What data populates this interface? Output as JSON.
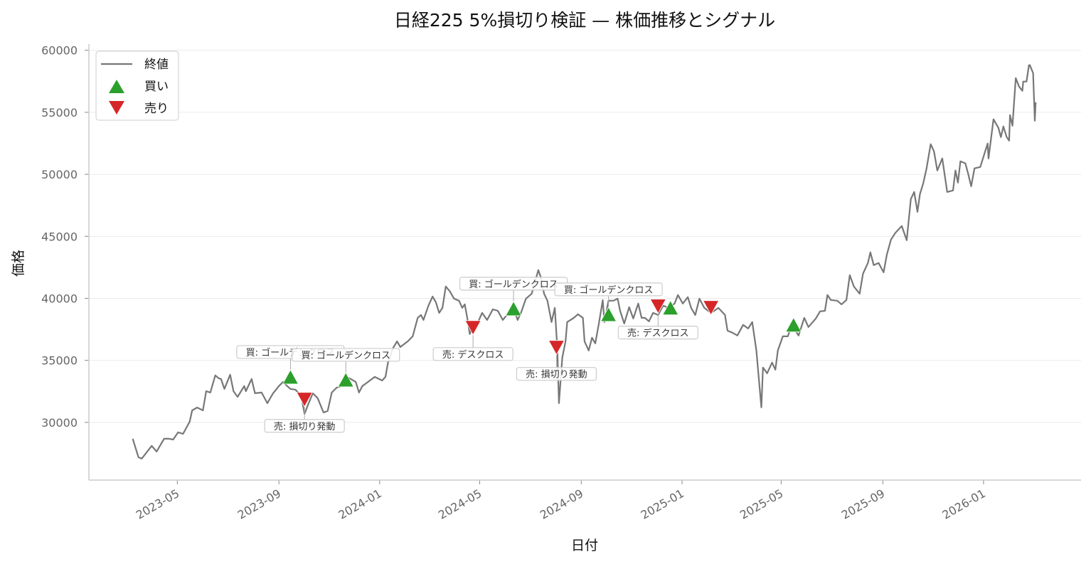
{
  "chart_data": {
    "type": "line",
    "title": "日経225 5%損切り検証 — 株価推移とシグナル",
    "xlabel": "日付",
    "ylabel": "価格",
    "xlim": [
      "2023-01-14",
      "2026-04-29"
    ],
    "ylim": [
      25350,
      60500
    ],
    "y_ticks": [
      30000,
      35000,
      40000,
      45000,
      50000,
      55000,
      60000
    ],
    "x_ticks": [
      "2023-05",
      "2023-09",
      "2024-01",
      "2024-05",
      "2024-09",
      "2025-01",
      "2025-05",
      "2025-09",
      "2026-01"
    ],
    "grid": "horizontal",
    "legend_position": "top-left",
    "legend": [
      "終値",
      "買い",
      "売り"
    ],
    "colors": {
      "close": "#777777",
      "buy": "#2ca02c",
      "sell": "#d62728"
    },
    "series": [
      {
        "name": "終値",
        "points": [
          [
            "2023-03-08",
            28680
          ],
          [
            "2023-03-15",
            27190
          ],
          [
            "2023-03-19",
            27080
          ],
          [
            "2023-03-31",
            28110
          ],
          [
            "2023-04-06",
            27650
          ],
          [
            "2023-04-15",
            28680
          ],
          [
            "2023-04-21",
            28680
          ],
          [
            "2023-04-26",
            28620
          ],
          [
            "2023-05-02",
            29200
          ],
          [
            "2023-05-08",
            29080
          ],
          [
            "2023-05-16",
            30060
          ],
          [
            "2023-05-19",
            30970
          ],
          [
            "2023-05-25",
            31200
          ],
          [
            "2023-06-01",
            30970
          ],
          [
            "2023-06-05",
            32520
          ],
          [
            "2023-06-10",
            32410
          ],
          [
            "2023-06-16",
            33790
          ],
          [
            "2023-06-20",
            33560
          ],
          [
            "2023-06-23",
            33500
          ],
          [
            "2023-06-27",
            32700
          ],
          [
            "2023-07-04",
            33840
          ],
          [
            "2023-07-08",
            32520
          ],
          [
            "2023-07-13",
            32060
          ],
          [
            "2023-07-21",
            32930
          ],
          [
            "2023-07-23",
            32520
          ],
          [
            "2023-07-30",
            33500
          ],
          [
            "2023-08-03",
            32350
          ],
          [
            "2023-08-11",
            32410
          ],
          [
            "2023-08-18",
            31550
          ],
          [
            "2023-08-25",
            32350
          ],
          [
            "2023-09-01",
            32930
          ],
          [
            "2023-09-06",
            33270
          ],
          [
            "2023-09-11",
            32930
          ],
          [
            "2023-09-15",
            32700
          ],
          [
            "2023-09-21",
            32640
          ],
          [
            "2023-09-28",
            32120
          ],
          [
            "2023-10-02",
            30690
          ],
          [
            "2023-10-06",
            31380
          ],
          [
            "2023-10-12",
            32350
          ],
          [
            "2023-10-18",
            31950
          ],
          [
            "2023-10-25",
            30800
          ],
          [
            "2023-10-30",
            30920
          ],
          [
            "2023-11-04",
            32410
          ],
          [
            "2023-11-10",
            32810
          ],
          [
            "2023-11-17",
            32930
          ],
          [
            "2023-11-22",
            33670
          ],
          [
            "2023-11-27",
            33500
          ],
          [
            "2023-12-03",
            33270
          ],
          [
            "2023-12-07",
            32410
          ],
          [
            "2023-12-11",
            32930
          ],
          [
            "2023-12-18",
            33270
          ],
          [
            "2023-12-26",
            33670
          ],
          [
            "2024-01-04",
            33380
          ],
          [
            "2024-01-08",
            33670
          ],
          [
            "2024-01-11",
            34820
          ],
          [
            "2024-01-17",
            35970
          ],
          [
            "2024-01-22",
            36540
          ],
          [
            "2024-01-26",
            36080
          ],
          [
            "2024-02-04",
            36540
          ],
          [
            "2024-02-10",
            36940
          ],
          [
            "2024-02-16",
            38430
          ],
          [
            "2024-02-20",
            38660
          ],
          [
            "2024-02-23",
            38260
          ],
          [
            "2024-02-29",
            39410
          ],
          [
            "2024-03-05",
            40150
          ],
          [
            "2024-03-09",
            39700
          ],
          [
            "2024-03-13",
            38830
          ],
          [
            "2024-03-17",
            39230
          ],
          [
            "2024-03-21",
            40960
          ],
          [
            "2024-03-26",
            40560
          ],
          [
            "2024-03-31",
            39980
          ],
          [
            "2024-04-06",
            39810
          ],
          [
            "2024-04-10",
            39230
          ],
          [
            "2024-04-13",
            39520
          ],
          [
            "2024-04-16",
            38430
          ],
          [
            "2024-04-19",
            37120
          ],
          [
            "2024-04-23",
            37860
          ],
          [
            "2024-04-29",
            38090
          ],
          [
            "2024-05-04",
            38830
          ],
          [
            "2024-05-10",
            38260
          ],
          [
            "2024-05-17",
            39120
          ],
          [
            "2024-05-23",
            39000
          ],
          [
            "2024-05-29",
            38260
          ],
          [
            "2024-06-03",
            38660
          ],
          [
            "2024-06-12",
            39000
          ],
          [
            "2024-06-16",
            38260
          ],
          [
            "2024-06-20",
            38830
          ],
          [
            "2024-06-26",
            39980
          ],
          [
            "2024-07-03",
            40380
          ],
          [
            "2024-07-07",
            41300
          ],
          [
            "2024-07-11",
            42280
          ],
          [
            "2024-07-14",
            41700
          ],
          [
            "2024-07-18",
            40380
          ],
          [
            "2024-07-22",
            39810
          ],
          [
            "2024-07-27",
            38090
          ],
          [
            "2024-07-31",
            39230
          ],
          [
            "2024-08-03",
            35970
          ],
          [
            "2024-08-05",
            31550
          ],
          [
            "2024-08-09",
            35220
          ],
          [
            "2024-08-13",
            36540
          ],
          [
            "2024-08-15",
            38090
          ],
          [
            "2024-08-23",
            38430
          ],
          [
            "2024-08-28",
            38720
          ],
          [
            "2024-09-03",
            38430
          ],
          [
            "2024-09-05",
            36540
          ],
          [
            "2024-09-10",
            35800
          ],
          [
            "2024-09-14",
            36830
          ],
          [
            "2024-09-18",
            36370
          ],
          [
            "2024-09-22",
            37860
          ],
          [
            "2024-09-27",
            39860
          ],
          [
            "2024-09-29",
            38090
          ],
          [
            "2024-10-04",
            39810
          ],
          [
            "2024-10-10",
            39810
          ],
          [
            "2024-10-15",
            39980
          ],
          [
            "2024-10-18",
            39000
          ],
          [
            "2024-10-23",
            37970
          ],
          [
            "2024-10-29",
            39290
          ],
          [
            "2024-11-03",
            38380
          ],
          [
            "2024-11-09",
            39580
          ],
          [
            "2024-11-13",
            38430
          ],
          [
            "2024-11-17",
            38430
          ],
          [
            "2024-11-22",
            38150
          ],
          [
            "2024-11-27",
            38830
          ],
          [
            "2024-12-03",
            38660
          ],
          [
            "2024-12-09",
            39410
          ],
          [
            "2024-12-16",
            39230
          ],
          [
            "2024-12-23",
            39580
          ],
          [
            "2024-12-27",
            40270
          ],
          [
            "2025-01-02",
            39580
          ],
          [
            "2025-01-08",
            40100
          ],
          [
            "2025-01-12",
            39230
          ],
          [
            "2025-01-17",
            38660
          ],
          [
            "2025-01-22",
            39980
          ],
          [
            "2025-01-28",
            39230
          ],
          [
            "2025-02-05",
            38830
          ],
          [
            "2025-02-14",
            39230
          ],
          [
            "2025-02-22",
            38660
          ],
          [
            "2025-02-25",
            37400
          ],
          [
            "2025-03-03",
            37230
          ],
          [
            "2025-03-09",
            37010
          ],
          [
            "2025-03-16",
            37860
          ],
          [
            "2025-03-22",
            37570
          ],
          [
            "2025-03-27",
            38090
          ],
          [
            "2025-04-01",
            35800
          ],
          [
            "2025-04-04",
            33500
          ],
          [
            "2025-04-07",
            31210
          ],
          [
            "2025-04-09",
            34420
          ],
          [
            "2025-04-14",
            33960
          ],
          [
            "2025-04-20",
            34820
          ],
          [
            "2025-04-24",
            34250
          ],
          [
            "2025-04-27",
            35800
          ],
          [
            "2025-05-03",
            36940
          ],
          [
            "2025-05-09",
            36940
          ],
          [
            "2025-05-14",
            37860
          ],
          [
            "2025-05-22",
            37000
          ],
          [
            "2025-05-29",
            38430
          ],
          [
            "2025-06-03",
            37690
          ],
          [
            "2025-06-12",
            38380
          ],
          [
            "2025-06-17",
            38950
          ],
          [
            "2025-06-23",
            39000
          ],
          [
            "2025-06-26",
            40270
          ],
          [
            "2025-06-30",
            39870
          ],
          [
            "2025-07-08",
            39810
          ],
          [
            "2025-07-13",
            39520
          ],
          [
            "2025-07-19",
            39870
          ],
          [
            "2025-07-23",
            41870
          ],
          [
            "2025-07-28",
            40960
          ],
          [
            "2025-08-04",
            40380
          ],
          [
            "2025-08-08",
            41990
          ],
          [
            "2025-08-14",
            42850
          ],
          [
            "2025-08-17",
            43710
          ],
          [
            "2025-08-21",
            42680
          ],
          [
            "2025-08-27",
            42850
          ],
          [
            "2025-09-02",
            42100
          ],
          [
            "2025-09-06",
            43540
          ],
          [
            "2025-09-11",
            44740
          ],
          [
            "2025-09-16",
            45260
          ],
          [
            "2025-09-24",
            45830
          ],
          [
            "2025-09-30",
            44690
          ],
          [
            "2025-10-05",
            48010
          ],
          [
            "2025-10-09",
            48580
          ],
          [
            "2025-10-13",
            46980
          ],
          [
            "2025-10-16",
            48410
          ],
          [
            "2025-10-20",
            49270
          ],
          [
            "2025-10-24",
            50480
          ],
          [
            "2025-10-29",
            52430
          ],
          [
            "2025-11-02",
            51860
          ],
          [
            "2025-11-06",
            50310
          ],
          [
            "2025-11-12",
            51280
          ],
          [
            "2025-11-18",
            48580
          ],
          [
            "2025-11-25",
            48700
          ],
          [
            "2025-11-28",
            50310
          ],
          [
            "2025-12-01",
            49330
          ],
          [
            "2025-12-04",
            51050
          ],
          [
            "2025-12-10",
            50880
          ],
          [
            "2025-12-13",
            50130
          ],
          [
            "2025-12-17",
            49040
          ],
          [
            "2025-12-21",
            50480
          ],
          [
            "2025-12-28",
            50590
          ],
          [
            "2026-01-06",
            52490
          ],
          [
            "2026-01-07",
            51280
          ],
          [
            "2026-01-13",
            54440
          ],
          [
            "2026-01-19",
            53750
          ],
          [
            "2026-01-22",
            53000
          ],
          [
            "2026-01-25",
            53860
          ],
          [
            "2026-01-29",
            53000
          ],
          [
            "2026-02-01",
            52720
          ],
          [
            "2026-02-02",
            54780
          ],
          [
            "2026-02-05",
            53920
          ],
          [
            "2026-02-09",
            57760
          ],
          [
            "2026-02-13",
            57070
          ],
          [
            "2026-02-17",
            56730
          ],
          [
            "2026-02-18",
            57480
          ],
          [
            "2026-02-22",
            57480
          ],
          [
            "2026-02-25",
            58800
          ],
          [
            "2026-02-26",
            58800
          ],
          [
            "2026-03-02",
            58160
          ],
          [
            "2026-03-04",
            54320
          ],
          [
            "2026-03-05",
            55750
          ],
          [
            "2026-03-06",
            55750
          ]
        ]
      }
    ],
    "signals": [
      {
        "type": "buy",
        "date": "2023-09-15",
        "value": 33610,
        "label": "買: ゴールデンクロス"
      },
      {
        "type": "sell",
        "date": "2023-10-02",
        "value": 31900,
        "label": "売: 損切り発動"
      },
      {
        "type": "buy",
        "date": "2023-11-21",
        "value": 33380,
        "label": "買: ゴールデンクロス"
      },
      {
        "type": "sell",
        "date": "2024-04-23",
        "value": 37690,
        "label": "売: デスクロス"
      },
      {
        "type": "buy",
        "date": "2024-06-11",
        "value": 39120,
        "label": "買: ゴールデンクロス"
      },
      {
        "type": "sell",
        "date": "2024-08-02",
        "value": 36090,
        "label": "売: 損切り発動"
      },
      {
        "type": "buy",
        "date": "2024-10-04",
        "value": 38660,
        "label": "買: ゴールデンクロス"
      },
      {
        "type": "sell",
        "date": "2024-12-03",
        "value": 39420,
        "label": "売: デスクロス"
      },
      {
        "type": "buy",
        "date": "2024-12-18",
        "value": 39190,
        "label": ""
      },
      {
        "type": "sell",
        "date": "2025-02-05",
        "value": 39300,
        "label": ""
      },
      {
        "type": "buy",
        "date": "2025-05-16",
        "value": 37810,
        "label": ""
      }
    ]
  }
}
